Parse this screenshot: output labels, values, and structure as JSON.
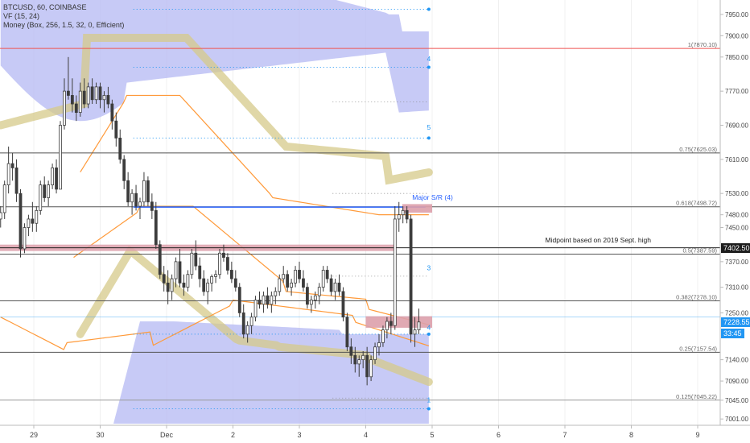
{
  "legend": {
    "symbol": "BTCUSD, 60, COINBASE",
    "vf": "VF (15, 24)",
    "money": "Money (Box, 256, 1.5, 32, 0, Efficient)"
  },
  "price_tags": [
    {
      "label": "7402.50",
      "value": 7402.5,
      "bg": "#1e1e1e"
    },
    {
      "label": "7228.55",
      "value": 7228.55,
      "bg": "#2196f3"
    },
    {
      "label": "33:45",
      "value": 7201,
      "bg": "#2196f3"
    }
  ],
  "annotations": {
    "midpoint": "Midpoint based on 2019 Sept. high",
    "major_sr": "Major S/R (4)"
  },
  "colors": {
    "candle": "#3c3c3c",
    "cloud": "#b9bdf4",
    "ribbon": "#d6c98a",
    "orange": "#ff9a3a",
    "blue_dots": "#2196f3",
    "pink_zone": "#dda0ab"
  },
  "chart_data": {
    "type": "candlestick",
    "symbol": "BTCUSD",
    "timeframe": "60",
    "y_range": [
      6990,
      7980
    ],
    "y_ticks": [
      7950,
      7900,
      7850,
      7770,
      7690,
      7610,
      7530,
      7480,
      7450,
      7370,
      7310,
      7250,
      7140,
      7090,
      7045,
      7001
    ],
    "y_tick_labels": [
      "7950.00",
      "7900.00",
      "7850.00",
      "7770.00",
      "7690.00",
      "7610.00",
      "7530.00",
      "7480.00",
      "7450.00",
      "7370.00",
      "7310.00",
      "7250.00",
      "7140.00",
      "7090.00",
      "7045.00",
      "7001.00"
    ],
    "x_ticks": [
      {
        "label": "29",
        "day": 29.0
      },
      {
        "label": "30",
        "day": 30.0
      },
      {
        "label": "Dec",
        "day": 31.0
      },
      {
        "label": "2",
        "day": 32.0
      },
      {
        "label": "3",
        "day": 33.0
      },
      {
        "label": "4",
        "day": 34.0
      },
      {
        "label": "5",
        "day": 35.0
      },
      {
        "label": "6",
        "day": 36.0
      },
      {
        "label": "7",
        "day": 37.0
      },
      {
        "label": "8",
        "day": 38.0
      },
      {
        "label": "9",
        "day": 39.0
      }
    ],
    "fib_levels": [
      {
        "label": "1(7870.10)",
        "value": 7870.1,
        "color": "#ef5350"
      },
      {
        "label": "0.75(7625.03)",
        "value": 7625.03,
        "color": "#555555"
      },
      {
        "label": "0.618(7498.72)",
        "value": 7498.72,
        "color": "#555555"
      },
      {
        "label": "0.5(7387.59)",
        "value": 7387.59,
        "color": "#555555"
      },
      {
        "label": "0.382(7278.10)",
        "value": 7278.1,
        "color": "#555555"
      },
      {
        "label": "0.25(7157.54)",
        "value": 7157.54,
        "color": "#555555"
      },
      {
        "label": "0.125(7045.22)",
        "value": 7045.22,
        "color": "#999999"
      }
    ],
    "box_labels": [
      "4",
      "5",
      "3",
      "4",
      "1"
    ],
    "candles": [
      [
        28.5,
        7470,
        7500,
        7450,
        7485
      ],
      [
        28.56,
        7485,
        7560,
        7470,
        7550
      ],
      [
        28.62,
        7550,
        7640,
        7530,
        7600
      ],
      [
        28.68,
        7600,
        7625,
        7560,
        7590
      ],
      [
        28.74,
        7590,
        7610,
        7510,
        7530
      ],
      [
        28.8,
        7530,
        7540,
        7380,
        7400
      ],
      [
        28.86,
        7400,
        7460,
        7390,
        7450
      ],
      [
        28.92,
        7450,
        7480,
        7430,
        7470
      ],
      [
        28.98,
        7470,
        7510,
        7440,
        7460
      ],
      [
        29.04,
        7460,
        7500,
        7440,
        7490
      ],
      [
        29.1,
        7490,
        7560,
        7480,
        7550
      ],
      [
        29.16,
        7550,
        7570,
        7510,
        7520
      ],
      [
        29.22,
        7520,
        7560,
        7500,
        7550
      ],
      [
        29.28,
        7550,
        7600,
        7540,
        7590
      ],
      [
        29.34,
        7590,
        7610,
        7530,
        7540
      ],
      [
        29.4,
        7540,
        7700,
        7540,
        7690
      ],
      [
        29.46,
        7690,
        7800,
        7680,
        7770
      ],
      [
        29.52,
        7770,
        7850,
        7750,
        7760
      ],
      [
        29.58,
        7760,
        7800,
        7720,
        7740
      ],
      [
        29.64,
        7740,
        7760,
        7700,
        7720
      ],
      [
        29.7,
        7720,
        7790,
        7710,
        7770
      ],
      [
        29.76,
        7770,
        7800,
        7730,
        7740
      ],
      [
        29.82,
        7740,
        7790,
        7730,
        7780
      ],
      [
        29.88,
        7780,
        7800,
        7740,
        7750
      ],
      [
        29.94,
        7750,
        7790,
        7740,
        7780
      ],
      [
        30.0,
        7780,
        7790,
        7730,
        7750
      ],
      [
        30.06,
        7750,
        7770,
        7720,
        7760
      ],
      [
        30.12,
        7760,
        7780,
        7730,
        7740
      ],
      [
        30.18,
        7740,
        7750,
        7680,
        7700
      ],
      [
        30.24,
        7700,
        7720,
        7640,
        7660
      ],
      [
        30.3,
        7660,
        7680,
        7600,
        7610
      ],
      [
        30.36,
        7610,
        7620,
        7540,
        7560
      ],
      [
        30.42,
        7560,
        7580,
        7500,
        7510
      ],
      [
        30.48,
        7510,
        7540,
        7480,
        7530
      ],
      [
        30.54,
        7530,
        7550,
        7490,
        7500
      ],
      [
        30.6,
        7500,
        7520,
        7470,
        7510
      ],
      [
        30.66,
        7510,
        7580,
        7500,
        7560
      ],
      [
        30.72,
        7560,
        7570,
        7500,
        7510
      ],
      [
        30.78,
        7510,
        7530,
        7470,
        7490
      ],
      [
        30.84,
        7490,
        7510,
        7400,
        7410
      ],
      [
        30.9,
        7410,
        7420,
        7330,
        7340
      ],
      [
        30.96,
        7340,
        7360,
        7300,
        7320
      ],
      [
        31.02,
        7320,
        7350,
        7270,
        7300
      ],
      [
        31.08,
        7300,
        7340,
        7280,
        7330
      ],
      [
        31.14,
        7330,
        7380,
        7310,
        7370
      ],
      [
        31.2,
        7370,
        7400,
        7310,
        7320
      ],
      [
        31.26,
        7320,
        7340,
        7290,
        7310
      ],
      [
        31.32,
        7310,
        7350,
        7300,
        7340
      ],
      [
        31.38,
        7340,
        7400,
        7330,
        7390
      ],
      [
        31.44,
        7390,
        7420,
        7350,
        7360
      ],
      [
        31.5,
        7360,
        7380,
        7310,
        7330
      ],
      [
        31.56,
        7330,
        7350,
        7290,
        7300
      ],
      [
        31.62,
        7300,
        7330,
        7270,
        7320
      ],
      [
        31.68,
        7320,
        7340,
        7300,
        7335
      ],
      [
        31.74,
        7335,
        7350,
        7320,
        7340
      ],
      [
        31.8,
        7340,
        7400,
        7330,
        7390
      ],
      [
        31.86,
        7390,
        7410,
        7370,
        7380
      ],
      [
        31.92,
        7380,
        7390,
        7340,
        7350
      ],
      [
        31.98,
        7350,
        7370,
        7320,
        7330
      ],
      [
        32.04,
        7330,
        7350,
        7300,
        7310
      ],
      [
        32.1,
        7310,
        7320,
        7240,
        7250
      ],
      [
        32.16,
        7250,
        7270,
        7190,
        7200
      ],
      [
        32.22,
        7200,
        7230,
        7180,
        7220
      ],
      [
        32.28,
        7220,
        7250,
        7200,
        7240
      ],
      [
        32.34,
        7240,
        7290,
        7230,
        7280
      ],
      [
        32.4,
        7280,
        7300,
        7260,
        7270
      ],
      [
        32.46,
        7270,
        7300,
        7250,
        7290
      ],
      [
        32.52,
        7290,
        7310,
        7260,
        7270
      ],
      [
        32.58,
        7270,
        7300,
        7250,
        7290
      ],
      [
        32.64,
        7290,
        7310,
        7270,
        7300
      ],
      [
        32.7,
        7300,
        7340,
        7290,
        7330
      ],
      [
        32.76,
        7330,
        7360,
        7320,
        7340
      ],
      [
        32.82,
        7340,
        7350,
        7300,
        7310
      ],
      [
        32.88,
        7310,
        7330,
        7290,
        7320
      ],
      [
        32.94,
        7320,
        7360,
        7310,
        7350
      ],
      [
        33.0,
        7350,
        7370,
        7320,
        7330
      ],
      [
        33.06,
        7330,
        7350,
        7300,
        7310
      ],
      [
        33.12,
        7310,
        7320,
        7260,
        7270
      ],
      [
        33.18,
        7270,
        7290,
        7250,
        7280
      ],
      [
        33.24,
        7280,
        7300,
        7260,
        7290
      ],
      [
        33.3,
        7290,
        7320,
        7270,
        7310
      ],
      [
        33.36,
        7310,
        7360,
        7300,
        7350
      ],
      [
        33.42,
        7350,
        7360,
        7320,
        7330
      ],
      [
        33.48,
        7330,
        7340,
        7290,
        7300
      ],
      [
        33.54,
        7300,
        7330,
        7280,
        7320
      ],
      [
        33.6,
        7320,
        7340,
        7290,
        7300
      ],
      [
        33.66,
        7300,
        7310,
        7230,
        7240
      ],
      [
        33.72,
        7240,
        7250,
        7160,
        7170
      ],
      [
        33.78,
        7170,
        7190,
        7130,
        7150
      ],
      [
        33.84,
        7150,
        7170,
        7110,
        7130
      ],
      [
        33.9,
        7130,
        7150,
        7100,
        7140
      ],
      [
        33.96,
        7140,
        7160,
        7120,
        7150
      ],
      [
        34.02,
        7150,
        7170,
        7080,
        7100
      ],
      [
        34.08,
        7100,
        7150,
        7090,
        7140
      ],
      [
        34.14,
        7140,
        7180,
        7130,
        7170
      ],
      [
        34.2,
        7170,
        7200,
        7150,
        7180
      ],
      [
        34.26,
        7180,
        7220,
        7170,
        7210
      ],
      [
        34.32,
        7210,
        7240,
        7190,
        7230
      ],
      [
        34.38,
        7230,
        7250,
        7200,
        7220
      ],
      [
        34.44,
        7220,
        7500,
        7210,
        7470
      ],
      [
        34.5,
        7470,
        7510,
        7440,
        7480
      ],
      [
        34.56,
        7480,
        7500,
        7460,
        7490
      ],
      [
        34.62,
        7490,
        7500,
        7460,
        7470
      ],
      [
        34.68,
        7470,
        7480,
        7180,
        7200
      ],
      [
        34.74,
        7200,
        7240,
        7170,
        7210
      ],
      [
        34.8,
        7210,
        7260,
        7200,
        7228.55
      ]
    ]
  }
}
